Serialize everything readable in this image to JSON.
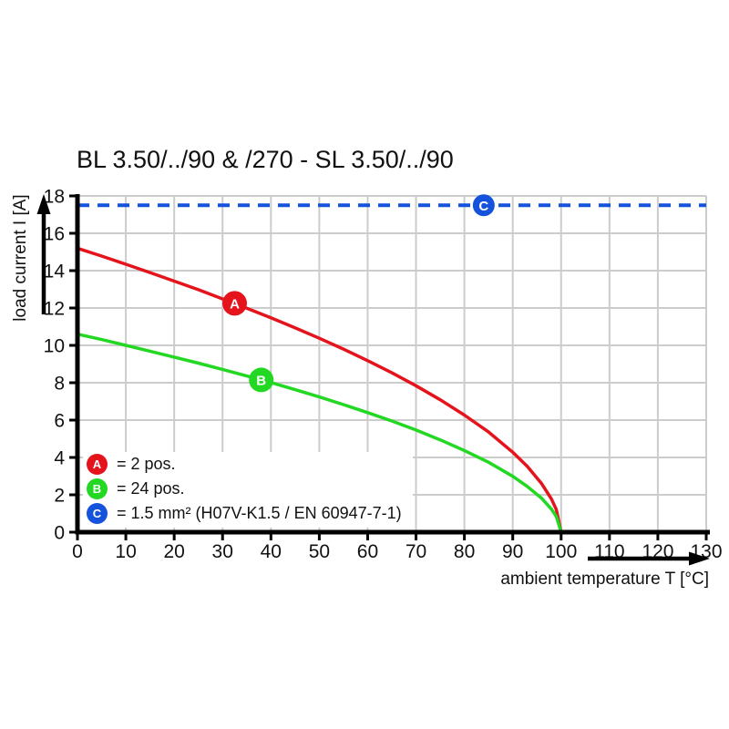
{
  "title": "BL 3.50/../90 & /270 - SL 3.50/../90",
  "chart_data": {
    "type": "line",
    "title": "BL 3.50/../90 & /270 - SL 3.50/../90",
    "xlabel": "ambient temperature T [°C]",
    "ylabel": "load current I [A]",
    "xlim": [
      0,
      130
    ],
    "ylim": [
      0,
      18
    ],
    "x_ticks": [
      0,
      10,
      20,
      30,
      40,
      50,
      60,
      70,
      80,
      90,
      100,
      110,
      120,
      130
    ],
    "y_ticks": [
      0,
      2,
      4,
      6,
      8,
      10,
      12,
      14,
      16,
      18
    ],
    "grid": true,
    "colors": {
      "series_a": "#e5131c",
      "series_b": "#22d822",
      "series_c": "#1553dd",
      "grid": "#cccccc",
      "axis": "#000000"
    },
    "series": [
      {
        "id": "A",
        "name": "2 pos.",
        "color": "#e5131c",
        "style": "solid",
        "points": [
          [
            0,
            15.2
          ],
          [
            5,
            14.78
          ],
          [
            10,
            14.34
          ],
          [
            15,
            13.9
          ],
          [
            20,
            13.44
          ],
          [
            25,
            12.98
          ],
          [
            30,
            12.49
          ],
          [
            35,
            11.99
          ],
          [
            40,
            11.48
          ],
          [
            45,
            10.94
          ],
          [
            50,
            10.38
          ],
          [
            55,
            9.8
          ],
          [
            60,
            9.18
          ],
          [
            65,
            8.53
          ],
          [
            70,
            7.84
          ],
          [
            75,
            7.09
          ],
          [
            80,
            6.27
          ],
          [
            85,
            5.36
          ],
          [
            90,
            4.28
          ],
          [
            93,
            3.52
          ],
          [
            96,
            2.59
          ],
          [
            98,
            1.77
          ],
          [
            99,
            1.21
          ],
          [
            100,
            0
          ]
        ]
      },
      {
        "id": "B",
        "name": "24 pos.",
        "color": "#22d822",
        "style": "solid",
        "points": [
          [
            0,
            10.6
          ],
          [
            5,
            10.31
          ],
          [
            10,
            10.0
          ],
          [
            15,
            9.69
          ],
          [
            20,
            9.37
          ],
          [
            25,
            9.05
          ],
          [
            30,
            8.71
          ],
          [
            35,
            8.36
          ],
          [
            40,
            8.01
          ],
          [
            45,
            7.63
          ],
          [
            50,
            7.24
          ],
          [
            55,
            6.83
          ],
          [
            60,
            6.4
          ],
          [
            65,
            5.95
          ],
          [
            70,
            5.47
          ],
          [
            75,
            4.94
          ],
          [
            80,
            4.37
          ],
          [
            85,
            3.74
          ],
          [
            90,
            2.99
          ],
          [
            93,
            2.45
          ],
          [
            96,
            1.81
          ],
          [
            98,
            1.23
          ],
          [
            99,
            0.84
          ],
          [
            100,
            0
          ]
        ]
      },
      {
        "id": "C",
        "name": "1.5 mm² (H07V-K1.5 / EN 60947-7-1)",
        "color": "#1553dd",
        "style": "dashed",
        "points": [
          [
            0,
            17.5
          ],
          [
            130,
            17.5
          ]
        ]
      }
    ],
    "markers": [
      {
        "label": "A",
        "x": 32.5,
        "y": 12.25,
        "color": "#e5131c"
      },
      {
        "label": "B",
        "x": 38,
        "y": 8.15,
        "color": "#22d822"
      },
      {
        "label": "C",
        "x": 84,
        "y": 17.5,
        "color": "#1553dd"
      }
    ],
    "legend": [
      {
        "label": "A",
        "text": "= 2 pos.",
        "color": "#e5131c"
      },
      {
        "label": "B",
        "text": "= 24 pos.",
        "color": "#22d822"
      },
      {
        "label": "C",
        "text": "= 1.5 mm² (H07V-K1.5 / EN 60947-7-1)",
        "color": "#1553dd"
      }
    ],
    "legend_position": "bottom-left-inside"
  }
}
